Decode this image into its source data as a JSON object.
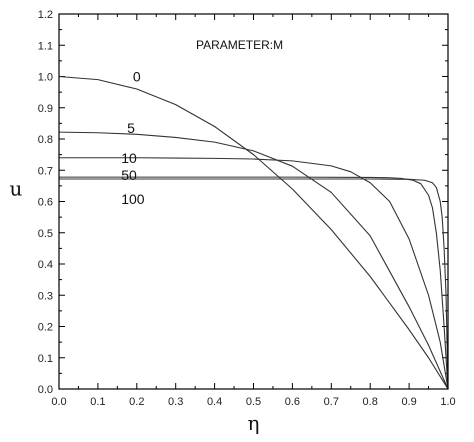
{
  "chart_data": {
    "type": "line",
    "title": "",
    "annotation": "PARAMETER:M",
    "xlabel": "η",
    "ylabel": "u",
    "xlim": [
      0.0,
      1.0
    ],
    "ylim": [
      0.0,
      1.2
    ],
    "x_ticks": [
      "0.0",
      "0.1",
      "0.2",
      "0.3",
      "0.4",
      "0.5",
      "0.6",
      "0.7",
      "0.8",
      "0.9",
      "1.0"
    ],
    "y_ticks": [
      "0.0",
      "0.1",
      "0.2",
      "0.3",
      "0.4",
      "0.5",
      "0.6",
      "0.7",
      "0.8",
      "0.9",
      "1.0",
      "1.1",
      "1.2"
    ],
    "grid": false,
    "colors": {
      "line": "#333333",
      "axis": "#000000"
    },
    "series": [
      {
        "label": "0",
        "x": [
          0.0,
          0.1,
          0.2,
          0.3,
          0.4,
          0.5,
          0.6,
          0.7,
          0.8,
          0.9,
          0.95,
          1.0
        ],
        "y": [
          1.0,
          0.99,
          0.96,
          0.91,
          0.84,
          0.75,
          0.64,
          0.51,
          0.36,
          0.19,
          0.1,
          0.0
        ]
      },
      {
        "label": "5",
        "x": [
          0.0,
          0.1,
          0.2,
          0.3,
          0.4,
          0.5,
          0.6,
          0.7,
          0.8,
          0.9,
          0.95,
          1.0
        ],
        "y": [
          0.822,
          0.82,
          0.815,
          0.805,
          0.79,
          0.762,
          0.713,
          0.629,
          0.49,
          0.263,
          0.14,
          0.0
        ]
      },
      {
        "label": "10",
        "x": [
          0.0,
          0.1,
          0.2,
          0.3,
          0.4,
          0.5,
          0.6,
          0.7,
          0.75,
          0.8,
          0.85,
          0.9,
          0.95,
          0.98,
          1.0
        ],
        "y": [
          0.74,
          0.74,
          0.74,
          0.739,
          0.738,
          0.736,
          0.73,
          0.714,
          0.695,
          0.66,
          0.6,
          0.48,
          0.3,
          0.15,
          0.0
        ]
      },
      {
        "label": "50",
        "x": [
          0.0,
          0.2,
          0.4,
          0.6,
          0.8,
          0.85,
          0.88,
          0.91,
          0.93,
          0.95,
          0.96,
          0.97,
          0.98,
          0.99,
          1.0
        ],
        "y": [
          0.678,
          0.678,
          0.678,
          0.678,
          0.677,
          0.676,
          0.674,
          0.668,
          0.657,
          0.62,
          0.58,
          0.5,
          0.38,
          0.2,
          0.0
        ]
      },
      {
        "label": "100",
        "x": [
          0.0,
          0.2,
          0.4,
          0.6,
          0.8,
          0.9,
          0.94,
          0.96,
          0.97,
          0.98,
          0.985,
          0.99,
          0.995,
          1.0
        ],
        "y": [
          0.672,
          0.672,
          0.672,
          0.672,
          0.672,
          0.671,
          0.668,
          0.66,
          0.645,
          0.6,
          0.55,
          0.45,
          0.3,
          0.0
        ]
      }
    ],
    "series_labels": [
      {
        "text": "0",
        "x": 0.19,
        "y": 1.0
      },
      {
        "text": "5",
        "x": 0.175,
        "y": 0.835
      },
      {
        "text": "10",
        "x": 0.16,
        "y": 0.74
      },
      {
        "text": "50",
        "x": 0.16,
        "y": 0.685
      },
      {
        "text": "100",
        "x": 0.16,
        "y": 0.608
      }
    ]
  }
}
